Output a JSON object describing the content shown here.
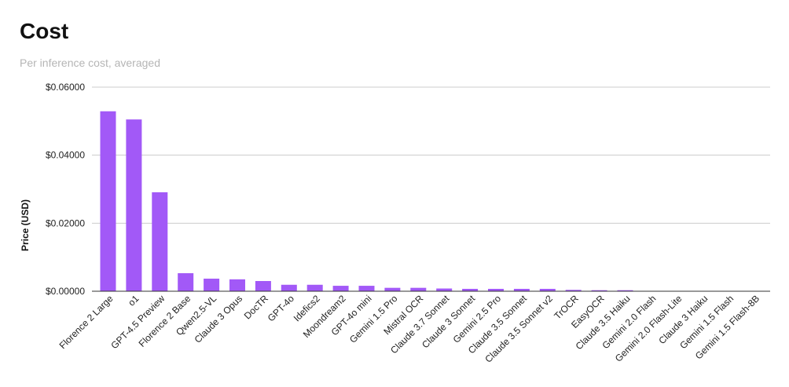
{
  "chart_data": {
    "type": "bar",
    "title": "Cost",
    "subtitle": "Per inference cost, averaged",
    "xlabel": "",
    "ylabel": "Price (USD)",
    "ylim": [
      0,
      0.06
    ],
    "yticks": [
      0,
      0.02,
      0.04,
      0.06
    ],
    "ytick_labels": [
      "$0.00000",
      "$0.02000",
      "$0.04000",
      "$0.06000"
    ],
    "grid": true,
    "bar_color": "#a259f7",
    "categories": [
      "Florence 2 Large",
      "o1",
      "GPT-4.5 Preview",
      "Florence 2 Base",
      "Qwen2.5-VL",
      "Claude 3 Opus",
      "DocTR",
      "GPT-4o",
      "Idefics2",
      "Moondream2",
      "GPT-4o mini",
      "Gemini 1.5 Pro",
      "Mistral OCR",
      "Claude 3.7 Sonnet",
      "Claude 3 Sonnet",
      "Gemini 2.5 Pro",
      "Claude 3.5 Sonnet",
      "Claude 3.5 Sonnet v2",
      "TrOCR",
      "EasyOCR",
      "Claude 3.5 Haiku",
      "Gemini 2.0 Flash",
      "Gemini 2.0 Flash-Lite",
      "Claude 3 Haiku",
      "Gemini 1.5 Flash",
      "Gemini 1.5 Flash-8B"
    ],
    "values": [
      0.0529,
      0.0505,
      0.0291,
      0.0053,
      0.0037,
      0.0035,
      0.003,
      0.0019,
      0.0019,
      0.0016,
      0.0016,
      0.001,
      0.001,
      0.0008,
      0.0007,
      0.0007,
      0.0007,
      0.0007,
      0.0004,
      0.0003,
      0.0003,
      0.0001,
      0.0001,
      0.0001,
      0.0001,
      5e-05
    ]
  }
}
